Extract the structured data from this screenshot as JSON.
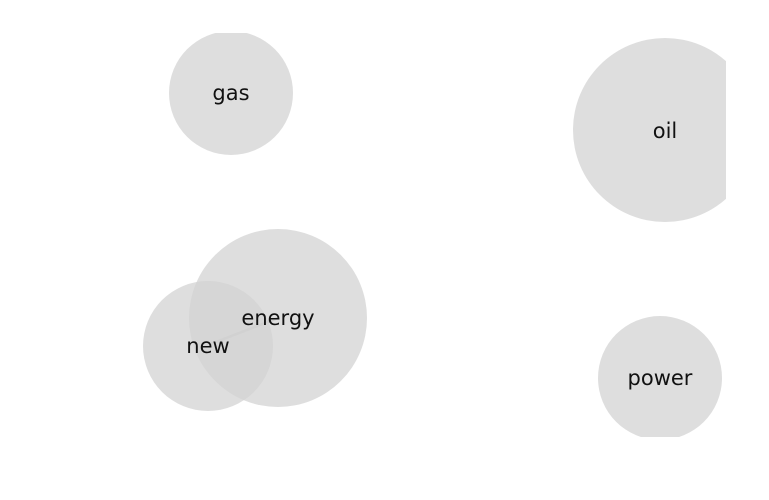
{
  "nodes": [
    {
      "id": "gas",
      "label": "gas"
    },
    {
      "id": "oil",
      "label": "oil"
    },
    {
      "id": "energy",
      "label": "energy"
    },
    {
      "id": "new",
      "label": "new"
    },
    {
      "id": "power",
      "label": "power"
    }
  ],
  "edges": [
    {
      "from": "new",
      "to": "energy"
    }
  ],
  "colors": {
    "bubble": "#d3d3d3",
    "edge": "#9a9a9a",
    "text": "#111111"
  }
}
